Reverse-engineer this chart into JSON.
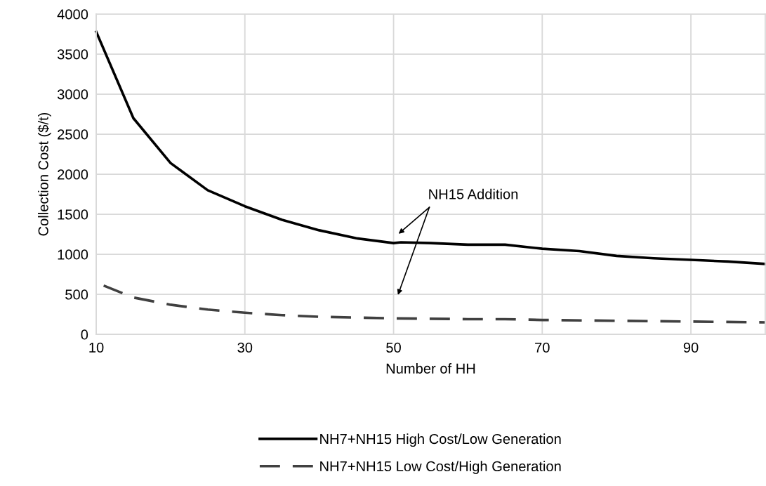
{
  "chart_data": {
    "type": "line",
    "xlabel": "Number of HH",
    "ylabel": "Collection Cost ($/t)",
    "xlim": [
      10,
      100
    ],
    "xticks": [
      10,
      30,
      50,
      70,
      90
    ],
    "ylim": [
      0,
      4000
    ],
    "yticks": [
      0,
      500,
      1000,
      1500,
      2000,
      2500,
      3000,
      3500,
      4000
    ],
    "grid": true,
    "legend": "bottom",
    "series": [
      {
        "name": "NH7+NH15 High Cost/Low Generation",
        "color": "#000000",
        "line_style": "solid",
        "x": [
          10,
          15,
          20,
          25,
          30,
          35,
          40,
          45,
          50,
          51,
          55,
          60,
          65,
          70,
          75,
          80,
          85,
          90,
          95,
          100
        ],
        "values": [
          3780,
          2700,
          2140,
          1800,
          1600,
          1430,
          1300,
          1200,
          1140,
          1150,
          1140,
          1120,
          1120,
          1070,
          1040,
          980,
          950,
          930,
          910,
          880
        ]
      },
      {
        "name": "NH7+NH15 Low Cost/High Generation",
        "color": "#404040",
        "line_style": "dashed",
        "x": [
          11,
          15,
          20,
          25,
          30,
          35,
          40,
          45,
          50,
          60,
          65,
          70,
          80,
          90,
          100
        ],
        "values": [
          610,
          460,
          370,
          310,
          270,
          240,
          220,
          210,
          200,
          190,
          190,
          180,
          170,
          160,
          150
        ]
      }
    ],
    "annotations": [
      "NH15 Addition"
    ]
  }
}
